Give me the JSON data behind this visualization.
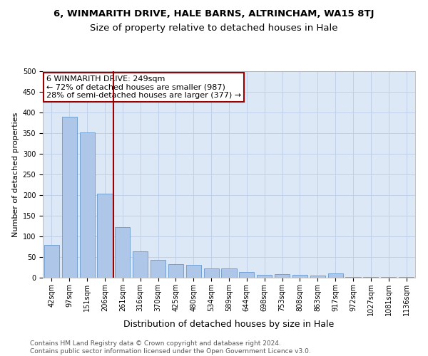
{
  "title_top": "6, WINMARITH DRIVE, HALE BARNS, ALTRINCHAM, WA15 8TJ",
  "title_sub": "Size of property relative to detached houses in Hale",
  "xlabel": "Distribution of detached houses by size in Hale",
  "ylabel": "Number of detached properties",
  "categories": [
    "42sqm",
    "97sqm",
    "151sqm",
    "206sqm",
    "261sqm",
    "316sqm",
    "370sqm",
    "425sqm",
    "480sqm",
    "534sqm",
    "589sqm",
    "644sqm",
    "698sqm",
    "753sqm",
    "808sqm",
    "863sqm",
    "917sqm",
    "972sqm",
    "1027sqm",
    "1081sqm",
    "1136sqm"
  ],
  "values": [
    79,
    390,
    351,
    204,
    122,
    63,
    43,
    32,
    31,
    23,
    23,
    14,
    7,
    8,
    7,
    5,
    10,
    2,
    1,
    1,
    2
  ],
  "bar_color": "#aec6e8",
  "bar_edge_color": "#6699cc",
  "vline_color": "#990000",
  "annotation_text": "6 WINMARITH DRIVE: 249sqm\n← 72% of detached houses are smaller (987)\n28% of semi-detached houses are larger (377) →",
  "annotation_box_color": "white",
  "annotation_box_edge": "#990000",
  "ylim": [
    0,
    500
  ],
  "yticks": [
    0,
    50,
    100,
    150,
    200,
    250,
    300,
    350,
    400,
    450,
    500
  ],
  "grid_color": "#c0d0e8",
  "background_color": "#dce8f5",
  "footer": "Contains HM Land Registry data © Crown copyright and database right 2024.\nContains public sector information licensed under the Open Government Licence v3.0.",
  "title_fontsize": 9.5,
  "subtitle_fontsize": 9.5,
  "xlabel_fontsize": 9,
  "ylabel_fontsize": 8,
  "tick_fontsize": 7,
  "footer_fontsize": 6.5,
  "ann_fontsize": 8
}
